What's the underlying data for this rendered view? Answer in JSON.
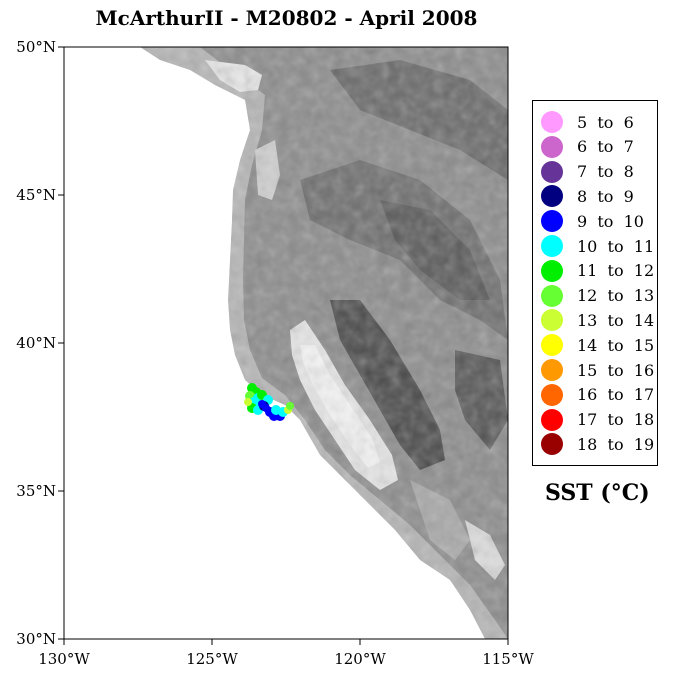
{
  "title": "McArthurII - M20802 - April 2008",
  "map": {
    "lat_range": [
      30,
      50
    ],
    "lon_range": [
      -130,
      -115
    ],
    "lat_labels": [
      "50°N",
      "45°N",
      "40°N",
      "35°N",
      "30°N"
    ],
    "lon_labels": [
      "130°W",
      "125°W",
      "120°W",
      "115°W"
    ],
    "basemap": "grayscale topography (shaded elevation), ocean white",
    "track_region": "off central California near San Francisco Bay (~37.5–38.5°N, 122.5–124°W)"
  },
  "legend": {
    "title": "SST (°C)",
    "items": [
      {
        "label": "5  to  6",
        "color": "#ff99ff"
      },
      {
        "label": "6  to  7",
        "color": "#cc66cc"
      },
      {
        "label": "7  to  8",
        "color": "#663399"
      },
      {
        "label": "8  to  9",
        "color": "#000080"
      },
      {
        "label": "9  to  10",
        "color": "#0000ff"
      },
      {
        "label": "10  to  11",
        "color": "#00ffff"
      },
      {
        "label": "11  to  12",
        "color": "#00ee00"
      },
      {
        "label": "12  to  13",
        "color": "#66ff33"
      },
      {
        "label": "13  to  14",
        "color": "#ccff33"
      },
      {
        "label": "14  to  15",
        "color": "#ffff00"
      },
      {
        "label": "15  to  16",
        "color": "#ff9900"
      },
      {
        "label": "16  to  17",
        "color": "#ff6600"
      },
      {
        "label": "17  to  18",
        "color": "#ff0000"
      },
      {
        "label": "18  to  19",
        "color": "#990000"
      }
    ]
  }
}
